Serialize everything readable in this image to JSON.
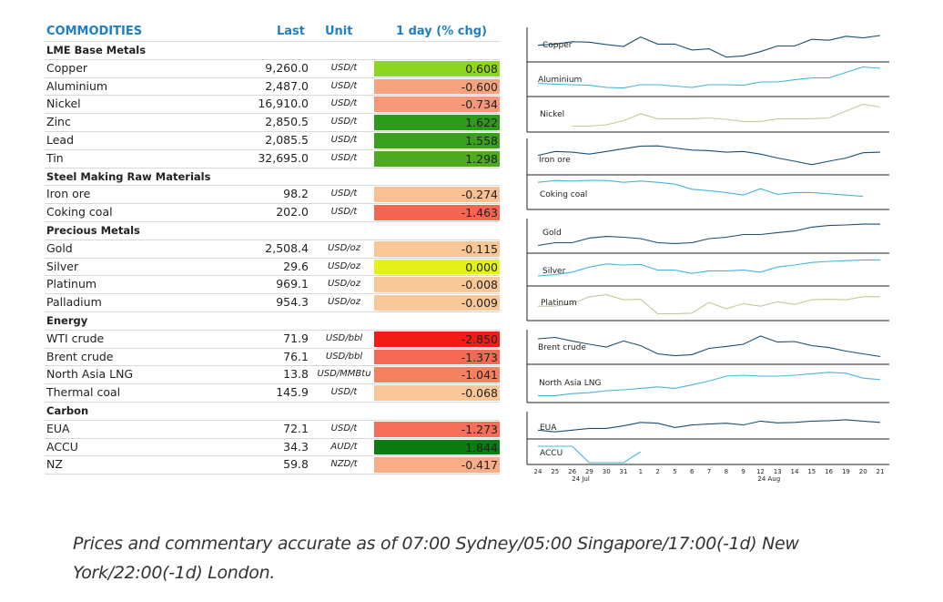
{
  "header": {
    "commodities": "COMMODITIES",
    "last": "Last",
    "unit": "Unit",
    "change": "1 day (% chg)"
  },
  "colors": {
    "header_text": "#1f7fc6",
    "line_dark": "#1a4f72",
    "line_light": "#47b4e0",
    "line_olive": "#c9c79a"
  },
  "sections": [
    {
      "title": "LME Base Metals",
      "rows": [
        {
          "name": "Copper",
          "last": "9,260.0",
          "unit": "USD/t",
          "change": "0.608",
          "color": "#8ed61f"
        },
        {
          "name": "Aluminium",
          "last": "2,487.0",
          "unit": "USD/t",
          "change": "-0.600",
          "color": "#f8a27e"
        },
        {
          "name": "Nickel",
          "last": "16,910.0",
          "unit": "USD/t",
          "change": "-0.734",
          "color": "#f6977a"
        },
        {
          "name": "Zinc",
          "last": "2,850.5",
          "unit": "USD/t",
          "change": "1.622",
          "color": "#2e9a1a"
        },
        {
          "name": "Lead",
          "last": "2,085.5",
          "unit": "USD/t",
          "change": "1.558",
          "color": "#38a01c"
        },
        {
          "name": "Tin",
          "last": "32,695.0",
          "unit": "USD/t",
          "change": "1.298",
          "color": "#4eaa1e"
        }
      ]
    },
    {
      "title": "Steel Making Raw Materials",
      "rows": [
        {
          "name": "Iron ore",
          "last": "98.2",
          "unit": "USD/t",
          "change": "-0.274",
          "color": "#f9c094"
        },
        {
          "name": "Coking coal",
          "last": "202.0",
          "unit": "USD/t",
          "change": "-1.463",
          "color": "#f56652"
        }
      ]
    },
    {
      "title": "Precious Metals",
      "rows": [
        {
          "name": "Gold",
          "last": "2,508.4",
          "unit": "USD/oz",
          "change": "-0.115",
          "color": "#f9c796"
        },
        {
          "name": "Silver",
          "last": "29.6",
          "unit": "USD/oz",
          "change": "0.000",
          "color": "#e4f21a"
        },
        {
          "name": "Platinum",
          "last": "969.1",
          "unit": "USD/oz",
          "change": "-0.008",
          "color": "#f9c898"
        },
        {
          "name": "Palladium",
          "last": "954.3",
          "unit": "USD/oz",
          "change": "-0.009",
          "color": "#f9c898"
        }
      ]
    },
    {
      "title": "Energy",
      "rows": [
        {
          "name": "WTI crude",
          "last": "71.9",
          "unit": "USD/bbl",
          "change": "-2.850",
          "color": "#f21b16"
        },
        {
          "name": "Brent crude",
          "last": "76.1",
          "unit": "USD/bbl",
          "change": "-1.373",
          "color": "#f56a55"
        },
        {
          "name": "North Asia LNG",
          "last": "13.8",
          "unit": "USD/MMBtu",
          "change": "-1.041",
          "color": "#f6805f"
        },
        {
          "name": "Thermal coal",
          "last": "145.9",
          "unit": "USD/t",
          "change": "-0.068",
          "color": "#f9c797"
        }
      ]
    },
    {
      "title": "Carbon",
      "rows": [
        {
          "name": "EUA",
          "last": "72.1",
          "unit": "USD/t",
          "change": "-1.273",
          "color": "#f56e58"
        },
        {
          "name": "ACCU",
          "last": "34.3",
          "unit": "AUD/t",
          "change": "1.844",
          "color": "#0b7c12"
        },
        {
          "name": "NZ",
          "last": "59.8",
          "unit": "NZD/t",
          "change": "-0.417",
          "color": "#f8ad86"
        }
      ]
    }
  ],
  "chart_data": {
    "type": "line",
    "title": "",
    "xlabel": "",
    "ylabel": "",
    "x_ticks": [
      "24",
      "25",
      "26",
      "29",
      "30",
      "31",
      "1",
      "2",
      "5",
      "6",
      "7",
      "8",
      "9",
      "12",
      "13",
      "14",
      "15",
      "16",
      "19",
      "20",
      "21"
    ],
    "x_month_labels": [
      {
        "label": "24 Jul",
        "at_index": 2.5
      },
      {
        "label": "24 Aug",
        "at_index": 13.5
      }
    ],
    "groups": [
      {
        "series": [
          {
            "name": "Copper",
            "color": "#1a4f72",
            "values": [
              0.55,
              0.6,
              0.7,
              0.68,
              0.58,
              0.5,
              0.9,
              0.6,
              0.6,
              0.35,
              0.4,
              0.05,
              0.1,
              0.28,
              0.52,
              0.52,
              0.8,
              0.76,
              0.93,
              0.86,
              0.96
            ]
          },
          {
            "name": "Aluminium",
            "color": "#47b4e0",
            "values": [
              0.35,
              0.32,
              0.3,
              0.28,
              0.2,
              0.18,
              0.3,
              0.3,
              0.25,
              0.2,
              0.3,
              0.3,
              0.28,
              0.4,
              0.4,
              0.48,
              0.55,
              0.55,
              0.75,
              0.95,
              0.9
            ]
          },
          {
            "name": "Nickel",
            "color": "#c9c79a",
            "values": [
              null,
              null,
              0.05,
              0.05,
              0.1,
              0.25,
              0.5,
              0.32,
              0.32,
              0.32,
              0.35,
              0.3,
              0.22,
              0.22,
              0.32,
              0.32,
              0.32,
              0.35,
              0.6,
              0.85,
              0.75
            ]
          }
        ]
      },
      {
        "series": [
          {
            "name": "Iron ore",
            "color": "#1a4f72",
            "values": [
              0.6,
              0.75,
              0.72,
              0.65,
              0.75,
              0.85,
              0.95,
              0.96,
              0.88,
              0.8,
              0.78,
              0.72,
              0.75,
              0.65,
              0.5,
              0.38,
              0.25,
              0.38,
              0.5,
              0.7,
              0.72
            ]
          },
          {
            "name": "Coking coal",
            "color": "#47b4e0",
            "values": [
              0.85,
              0.92,
              0.9,
              0.93,
              0.92,
              0.85,
              0.9,
              0.85,
              0.78,
              0.58,
              0.52,
              0.45,
              0.35,
              0.6,
              0.38,
              0.45,
              0.45,
              0.4,
              0.35,
              0.3,
              null
            ]
          }
        ]
      },
      {
        "series": [
          {
            "name": "Gold",
            "color": "#1a4f72",
            "values": [
              0.15,
              0.25,
              0.25,
              0.42,
              0.48,
              0.45,
              0.4,
              0.25,
              0.22,
              0.25,
              0.4,
              0.45,
              0.55,
              0.55,
              0.62,
              0.68,
              0.82,
              0.88,
              0.9,
              0.93,
              0.93
            ]
          },
          {
            "name": "Silver",
            "color": "#47b4e0",
            "values": [
              0.25,
              0.3,
              0.4,
              0.6,
              0.72,
              0.68,
              0.7,
              0.48,
              0.48,
              0.35,
              0.45,
              0.45,
              0.48,
              0.4,
              0.6,
              0.68,
              0.78,
              0.82,
              0.85,
              0.88,
              0.88
            ]
          },
          {
            "name": "Platinum",
            "color": "#c9c79a",
            "values": [
              0.35,
              0.35,
              0.45,
              0.72,
              0.8,
              0.6,
              0.62,
              0.05,
              0.05,
              0.08,
              0.5,
              0.25,
              0.45,
              0.35,
              0.52,
              0.42,
              0.6,
              0.62,
              0.6,
              0.72,
              0.72
            ]
          }
        ]
      },
      {
        "series": [
          {
            "name": "Brent crude",
            "color": "#1a4f72",
            "values": [
              0.8,
              0.85,
              0.72,
              0.6,
              0.5,
              0.72,
              0.55,
              0.25,
              0.18,
              0.22,
              0.45,
              0.52,
              0.6,
              0.9,
              0.68,
              0.7,
              0.55,
              0.48,
              0.35,
              0.25,
              0.15
            ]
          },
          {
            "name": "North Asia LNG",
            "color": "#47b4e0",
            "values": [
              0.05,
              0.05,
              0.12,
              0.15,
              0.22,
              0.25,
              0.3,
              0.35,
              0.3,
              0.42,
              0.55,
              0.72,
              0.75,
              0.72,
              0.72,
              0.75,
              0.8,
              0.85,
              0.82,
              0.65,
              0.6
            ]
          }
        ]
      },
      {
        "series": [
          {
            "name": "EUA",
            "color": "#1a4f72",
            "values": [
              0.3,
              0.2,
              0.3,
              0.4,
              0.4,
              0.55,
              0.75,
              0.7,
              0.45,
              0.6,
              0.65,
              0.7,
              0.6,
              0.82,
              0.72,
              0.75,
              0.82,
              0.85,
              0.9,
              0.82,
              0.75
            ]
          },
          {
            "name": "ACCU",
            "color": "#47b4e0",
            "values": [
              0.9,
              0.9,
              0.9,
              0.0,
              0.0,
              0.0,
              0.6,
              null,
              null,
              null,
              null,
              null,
              null,
              null,
              null,
              null,
              null,
              null,
              null,
              null,
              null
            ]
          }
        ]
      }
    ]
  },
  "footer": {
    "line1": "Prices and commentary accurate as of 07:00 Sydney/05:00 Singapore/17:00(-1d) New",
    "line2": "York/22:00(-1d) London."
  }
}
